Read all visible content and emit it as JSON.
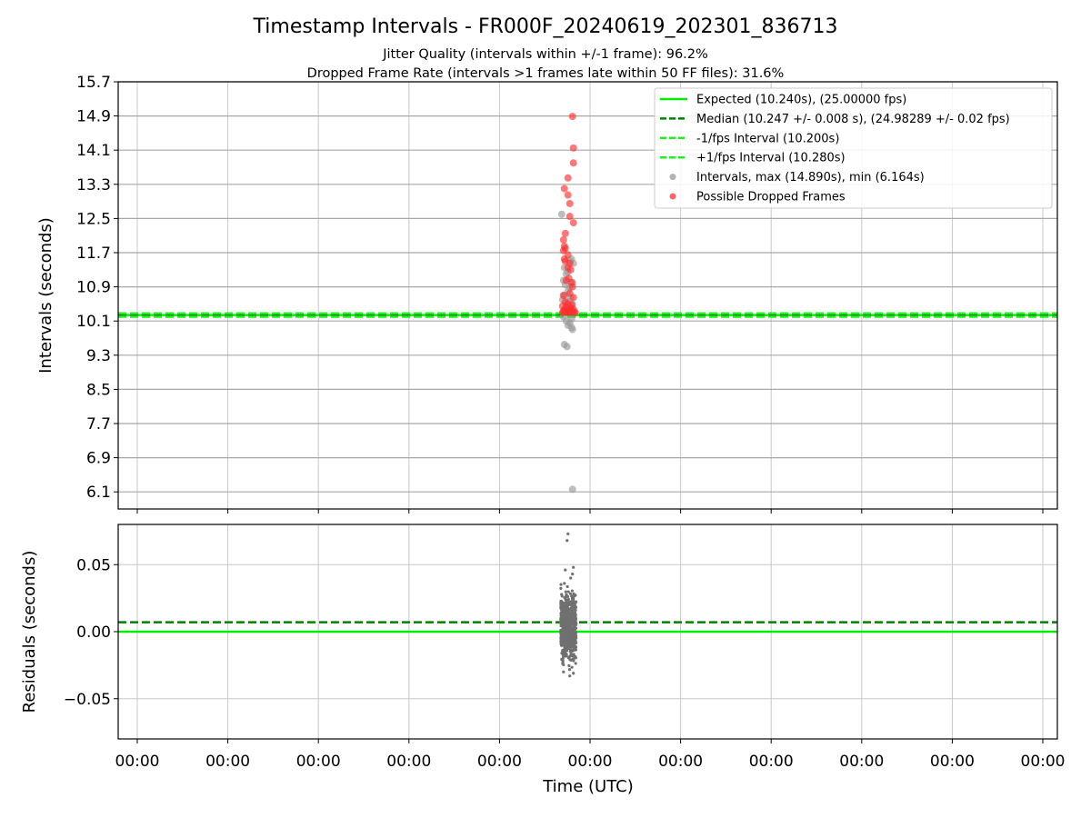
{
  "figure": {
    "title": "Timestamp Intervals - FR000F_20240619_202301_836713",
    "subtitle_1": "Jitter Quality (intervals within +/-1 frame): 96.2%",
    "subtitle_2": "Dropped Frame Rate (intervals >1 frames late within 50 FF files): 31.6%",
    "xlabel": "Time (UTC)"
  },
  "colors": {
    "expected": "#00ee00",
    "median": "#008000",
    "fps_interval": "#22ee22",
    "intervals": "#999999",
    "dropped": "#ff3030",
    "residuals": "#707070",
    "grid": "#c8c8c8",
    "hline_grid": "#a8a8a8"
  },
  "chart_data": [
    {
      "type": "scatter",
      "panel": "intervals",
      "ylabel": "Intervals (seconds)",
      "ylim": [
        5.7,
        15.7
      ],
      "y_ticks": [
        "15.7",
        "14.9",
        "14.1",
        "13.3",
        "12.5",
        "11.7",
        "10.9",
        "10.1",
        "9.3",
        "8.5",
        "7.7",
        "6.9",
        "6.1"
      ],
      "x_ticks": [
        "00:00",
        "00:00",
        "00:00",
        "00:00",
        "00:00",
        "00:00",
        "00:00",
        "00:00",
        "00:00",
        "00:00",
        "00:00"
      ],
      "grid": true,
      "legend_position": "top-right",
      "hlines": [
        {
          "name": "expected",
          "y": 10.24,
          "style": "solid",
          "color_key": "expected"
        },
        {
          "name": "median",
          "y": 10.247,
          "style": "dashed",
          "color_key": "median"
        },
        {
          "name": "minus_fps",
          "y": 10.2,
          "style": "dashed",
          "color_key": "fps_interval"
        },
        {
          "name": "plus_fps",
          "y": 10.28,
          "style": "dashed",
          "color_key": "fps_interval"
        }
      ],
      "legend": [
        {
          "label": "Expected (10.240s), (25.00000 fps)",
          "kind": "solid",
          "color_key": "expected"
        },
        {
          "label": "Median (10.247 +/- 0.008 s), (24.98289 +/- 0.02 fps)",
          "kind": "dashed",
          "color_key": "median"
        },
        {
          "label": "-1/fps Interval (10.200s)",
          "kind": "dashed",
          "color_key": "fps_interval"
        },
        {
          "label": "+1/fps Interval (10.280s)",
          "kind": "dashed",
          "color_key": "fps_interval"
        },
        {
          "label": "Intervals, max (14.890s), min (6.164s)",
          "kind": "marker",
          "color_key": "intervals"
        },
        {
          "label": "Possible Dropped Frames",
          "kind": "marker",
          "color_key": "dropped"
        }
      ],
      "x_range": [
        -5.0,
        5.44
      ],
      "series": [
        {
          "key": "intervals",
          "color_key": "intervals",
          "points": [
            [
              -0.07,
              12.6
            ],
            [
              0.04,
              11.55
            ],
            [
              0.02,
              11.5
            ],
            [
              0.06,
              11.45
            ],
            [
              -0.04,
              11.35
            ],
            [
              0.0,
              11.25
            ],
            [
              -0.02,
              11.2
            ],
            [
              -0.05,
              11.05
            ],
            [
              0.05,
              11.0
            ],
            [
              -0.03,
              10.95
            ],
            [
              0.02,
              10.9
            ],
            [
              0.0,
              10.8
            ],
            [
              -0.04,
              10.7
            ],
            [
              0.03,
              10.65
            ],
            [
              -0.06,
              10.6
            ],
            [
              0.01,
              10.55
            ],
            [
              0.05,
              10.5
            ],
            [
              -0.02,
              10.45
            ],
            [
              0.03,
              10.4
            ],
            [
              0.0,
              10.35
            ],
            [
              -0.05,
              10.2
            ],
            [
              0.04,
              10.15
            ],
            [
              -0.02,
              10.1
            ],
            [
              0.02,
              10.05
            ],
            [
              0.0,
              10.0
            ],
            [
              0.04,
              9.95
            ],
            [
              0.05,
              9.9
            ],
            [
              -0.04,
              9.55
            ],
            [
              -0.01,
              9.5
            ],
            [
              0.05,
              6.16
            ]
          ]
        },
        {
          "key": "dropped",
          "color_key": "dropped",
          "points": [
            [
              0.05,
              14.89
            ],
            [
              0.06,
              14.15
            ],
            [
              0.06,
              13.8
            ],
            [
              0.0,
              13.45
            ],
            [
              -0.04,
              13.2
            ],
            [
              0.0,
              13.05
            ],
            [
              0.02,
              12.85
            ],
            [
              0.02,
              12.55
            ],
            [
              0.06,
              12.4
            ],
            [
              -0.03,
              12.15
            ],
            [
              -0.05,
              12.0
            ],
            [
              -0.04,
              11.85
            ],
            [
              -0.03,
              11.8
            ],
            [
              -0.05,
              11.75
            ],
            [
              0.0,
              11.65
            ],
            [
              -0.04,
              11.55
            ],
            [
              -0.03,
              11.5
            ],
            [
              0.02,
              11.45
            ],
            [
              0.0,
              11.35
            ],
            [
              0.03,
              11.3
            ],
            [
              0.01,
              11.1
            ],
            [
              -0.02,
              11.05
            ],
            [
              0.04,
              11.0
            ],
            [
              0.05,
              10.9
            ],
            [
              0.02,
              10.75
            ],
            [
              -0.05,
              10.7
            ],
            [
              0.06,
              10.65
            ],
            [
              -0.03,
              10.55
            ],
            [
              0.0,
              10.5
            ],
            [
              0.04,
              10.48
            ],
            [
              -0.06,
              10.45
            ],
            [
              -0.02,
              10.42
            ],
            [
              0.03,
              10.4
            ],
            [
              0.06,
              10.38
            ],
            [
              -0.04,
              10.36
            ],
            [
              0.01,
              10.35
            ],
            [
              0.05,
              10.34
            ],
            [
              -0.05,
              10.33
            ],
            [
              -0.01,
              10.32
            ],
            [
              0.02,
              10.32
            ],
            [
              0.07,
              10.31
            ],
            [
              -0.03,
              10.31
            ],
            [
              0.0,
              10.3
            ],
            [
              0.04,
              10.3
            ],
            [
              -0.06,
              10.3
            ],
            [
              0.08,
              10.3
            ]
          ]
        }
      ]
    },
    {
      "type": "scatter",
      "panel": "residuals",
      "ylabel": "Residuals (seconds)",
      "ylim": [
        -0.08,
        0.08
      ],
      "y_ticks": [
        "0.05",
        "0.00",
        "−0.05"
      ],
      "y_tick_values": [
        0.05,
        0.0,
        -0.05
      ],
      "grid": true,
      "hlines": [
        {
          "name": "zero",
          "y": 0.0,
          "style": "solid",
          "color_key": "expected"
        },
        {
          "name": "median_offset",
          "y": 0.007,
          "style": "dashed",
          "color_key": "median"
        }
      ],
      "x_range": [
        -5.0,
        5.44
      ],
      "series": [
        {
          "key": "residuals",
          "color_key": "residuals",
          "y_spread": [
            -0.032,
            0.038
          ],
          "x_spread": [
            -0.08,
            0.09
          ],
          "count": 700,
          "outliers": [
            [
              0.0,
              0.073
            ],
            [
              -0.01,
              0.068
            ],
            [
              0.06,
              0.048
            ],
            [
              -0.03,
              0.046
            ],
            [
              0.05,
              0.043
            ],
            [
              0.03,
              0.04
            ],
            [
              -0.04,
              0.036
            ],
            [
              0.02,
              -0.033
            ],
            [
              0.06,
              -0.031
            ],
            [
              -0.05,
              -0.03
            ]
          ]
        }
      ]
    }
  ]
}
